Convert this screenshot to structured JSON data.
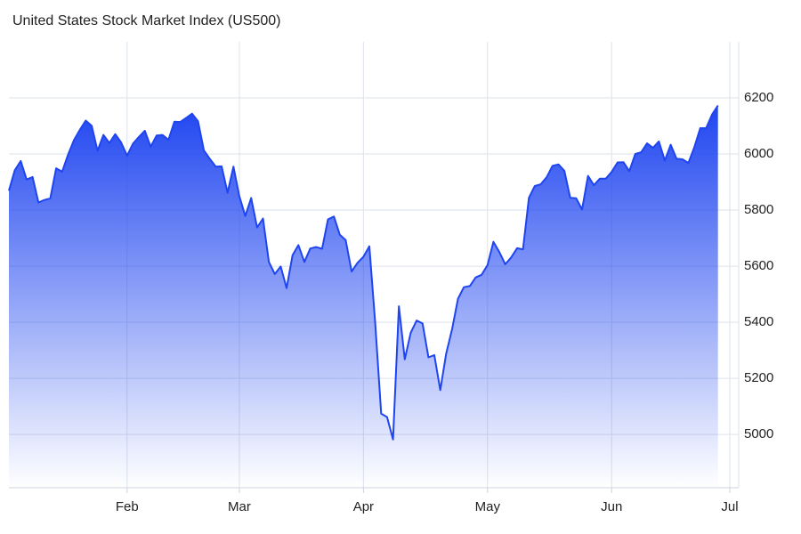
{
  "chart_data": {
    "type": "area",
    "title": "United States Stock Market Index (US500)",
    "categories": [
      null,
      null,
      null,
      null,
      null,
      null,
      null,
      null,
      null,
      null,
      null,
      null,
      null,
      null,
      null,
      null,
      null,
      null,
      null,
      null,
      "Feb",
      null,
      null,
      null,
      null,
      null,
      null,
      null,
      null,
      null,
      null,
      null,
      null,
      null,
      null,
      null,
      null,
      null,
      null,
      "Mar",
      null,
      null,
      null,
      null,
      null,
      null,
      null,
      null,
      null,
      null,
      null,
      null,
      null,
      null,
      null,
      null,
      null,
      null,
      null,
      null,
      "Apr",
      null,
      null,
      null,
      null,
      null,
      null,
      null,
      null,
      null,
      null,
      null,
      null,
      null,
      null,
      null,
      null,
      null,
      null,
      null,
      null,
      "May",
      null,
      null,
      null,
      null,
      null,
      null,
      null,
      null,
      null,
      null,
      null,
      null,
      null,
      null,
      null,
      null,
      null,
      null,
      null,
      null,
      "Jun",
      null,
      null,
      null,
      null,
      null,
      null,
      null,
      null,
      null,
      null,
      null,
      null,
      null,
      null,
      null,
      null,
      null,
      null,
      null,
      "Jul"
    ],
    "values": [
      5869,
      5942,
      5975,
      5909,
      5918,
      5827,
      5836,
      5842,
      5949,
      5937,
      5997,
      6049,
      6086,
      6119,
      6101,
      6012,
      6068,
      6039,
      6071,
      6041,
      5994,
      6037,
      6061,
      6083,
      6026,
      6066,
      6068,
      6051,
      6115,
      6114,
      6129,
      6144,
      6117,
      6013,
      5983,
      5955,
      5956,
      5862,
      5955,
      5850,
      5779,
      5843,
      5738,
      5770,
      5615,
      5572,
      5599,
      5522,
      5639,
      5675,
      5615,
      5663,
      5668,
      5662,
      5767,
      5777,
      5712,
      5693,
      5581,
      5612,
      5634,
      5671,
      5397,
      5074,
      5062,
      4982,
      5457,
      5268,
      5363,
      5406,
      5396,
      5275,
      5283,
      5158,
      5288,
      5376,
      5484,
      5525,
      5529,
      5560,
      5569,
      5604,
      5687,
      5650,
      5607,
      5631,
      5664,
      5660,
      5844,
      5886,
      5892,
      5917,
      5958,
      5963,
      5940,
      5844,
      5842,
      5802,
      5922,
      5889,
      5912,
      5912,
      5936,
      5970,
      5971,
      5939,
      6000,
      6006,
      6038,
      6022,
      6045,
      5977,
      6033,
      5983,
      5981,
      5968,
      6025,
      6092,
      6092,
      6141,
      6173,
      null,
      null
    ],
    "color": "#1f45f0",
    "ylim": [
      4810,
      6400
    ],
    "yticks": [
      5000,
      5200,
      5400,
      5600,
      5800,
      6000,
      6200
    ],
    "grid": true
  }
}
